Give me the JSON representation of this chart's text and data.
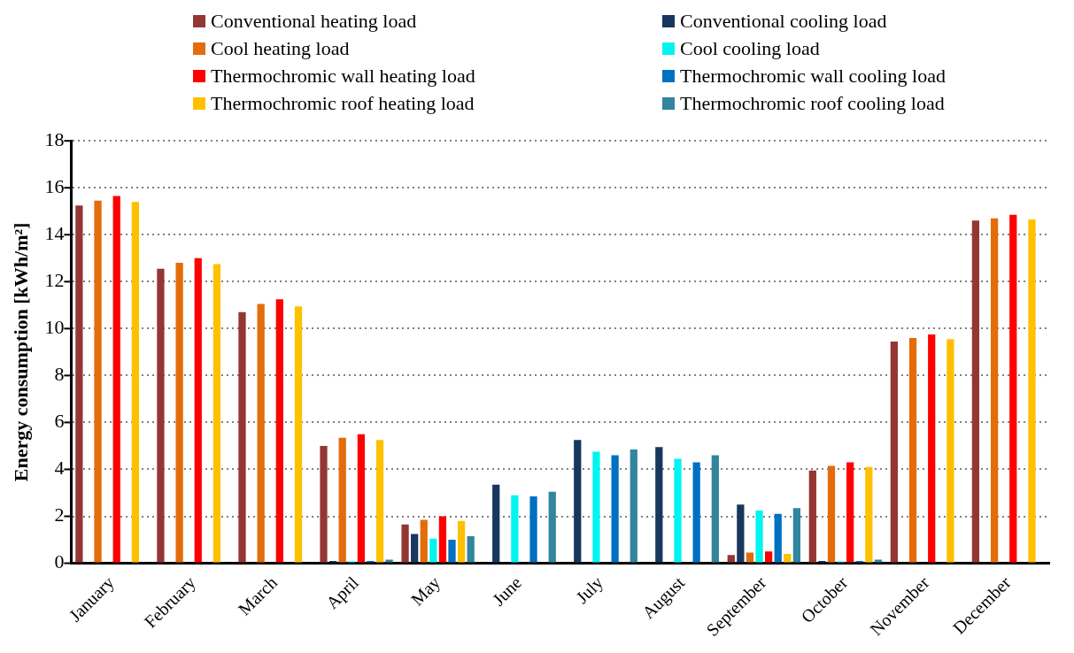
{
  "chart_data": {
    "type": "bar",
    "ylabel": "Energy consumption [kWh/m²]",
    "categories": [
      "January",
      "February",
      "March",
      "April",
      "May",
      "June",
      "July",
      "August",
      "September",
      "October",
      "November",
      "December"
    ],
    "series": [
      {
        "name": "Conventional heating load",
        "color": "#943634",
        "values": [
          15.25,
          12.55,
          10.7,
          5.0,
          1.65,
          0,
          0,
          0,
          0.35,
          3.95,
          9.45,
          14.6
        ]
      },
      {
        "name": "Conventional cooling load",
        "color": "#17375e",
        "values": [
          0,
          0,
          0,
          0.1,
          1.25,
          3.35,
          5.25,
          4.95,
          2.5,
          0.1,
          0,
          0
        ]
      },
      {
        "name": "Cool heating load",
        "color": "#e46c0a",
        "values": [
          15.45,
          12.8,
          11.05,
          5.35,
          1.85,
          0,
          0,
          0,
          0.45,
          4.15,
          9.6,
          14.7
        ]
      },
      {
        "name": "Cool cooling load",
        "color": "#00f5f0",
        "values": [
          0,
          0,
          0,
          0.08,
          1.05,
          2.9,
          4.75,
          4.45,
          2.25,
          0.08,
          0,
          0
        ]
      },
      {
        "name": "Thermochromic wall heating load",
        "color": "#ff0000",
        "values": [
          15.65,
          13.0,
          11.25,
          5.5,
          2.0,
          null,
          0,
          0,
          0.5,
          4.3,
          9.75,
          14.85
        ]
      },
      {
        "name": "Thermochromic wall cooling load",
        "color": "#0070c0",
        "values": [
          0,
          0,
          0,
          0.1,
          1.0,
          2.85,
          4.6,
          4.3,
          2.1,
          0.1,
          0,
          0
        ]
      },
      {
        "name": "Thermochromic roof heating load",
        "color": "#ffc000",
        "values": [
          15.4,
          12.75,
          10.95,
          5.25,
          1.8,
          0,
          0,
          0,
          0.4,
          4.1,
          9.55,
          14.65
        ]
      },
      {
        "name": "Thermochromic roof cooling load",
        "color": "#31859c",
        "values": [
          0,
          0,
          0,
          0.15,
          1.15,
          3.05,
          4.85,
          4.6,
          2.35,
          0.15,
          0,
          0
        ]
      }
    ],
    "ylim": [
      0,
      18
    ],
    "yticks": [
      0,
      2,
      4,
      6,
      8,
      10,
      12,
      14,
      16,
      18
    ],
    "grid": "y",
    "legend": "top"
  }
}
